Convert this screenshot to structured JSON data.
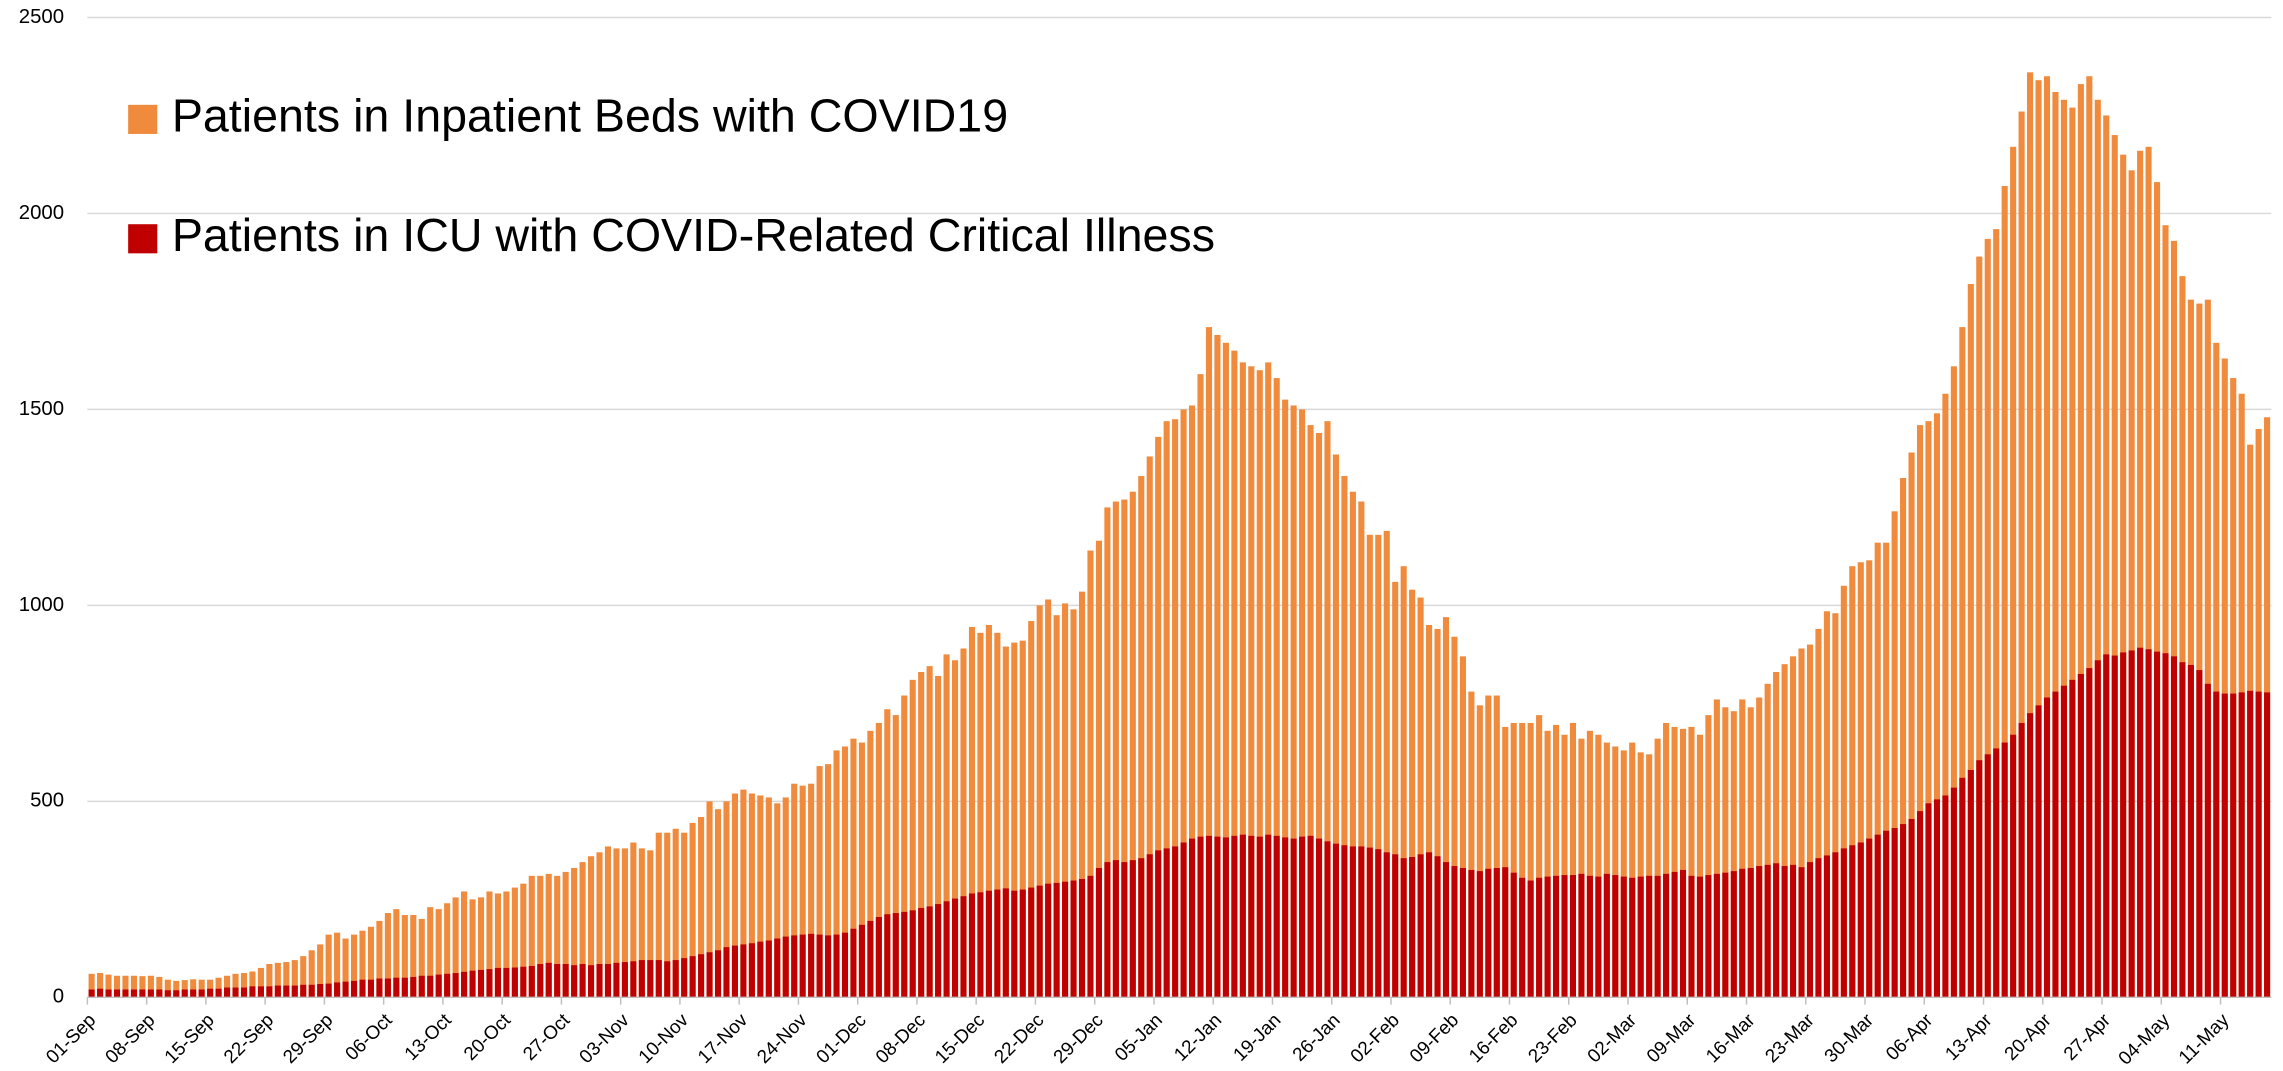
{
  "chart_data": {
    "type": "bar",
    "grid": true,
    "legend": "upper left",
    "ylim": [
      0,
      2500
    ],
    "yticks": [
      0,
      500,
      1000,
      1500,
      2000,
      2500
    ],
    "categories": [
      "01-Sep",
      null,
      null,
      null,
      null,
      null,
      null,
      "08-Sep",
      null,
      null,
      null,
      null,
      null,
      null,
      "15-Sep",
      null,
      null,
      null,
      null,
      null,
      null,
      "22-Sep",
      null,
      null,
      null,
      null,
      null,
      null,
      "29-Sep",
      null,
      null,
      null,
      null,
      null,
      null,
      "06-Oct",
      null,
      null,
      null,
      null,
      null,
      null,
      "13-Oct",
      null,
      null,
      null,
      null,
      null,
      null,
      "20-Oct",
      null,
      null,
      null,
      null,
      null,
      null,
      "27-Oct",
      null,
      null,
      null,
      null,
      null,
      null,
      "03-Nov",
      null,
      null,
      null,
      null,
      null,
      null,
      "10-Nov",
      null,
      null,
      null,
      null,
      null,
      null,
      "17-Nov",
      null,
      null,
      null,
      null,
      null,
      null,
      "24-Nov",
      null,
      null,
      null,
      null,
      null,
      null,
      "01-Dec",
      null,
      null,
      null,
      null,
      null,
      null,
      "08-Dec",
      null,
      null,
      null,
      null,
      null,
      null,
      "15-Dec",
      null,
      null,
      null,
      null,
      null,
      null,
      "22-Dec",
      null,
      null,
      null,
      null,
      null,
      null,
      "29-Dec",
      null,
      null,
      null,
      null,
      null,
      null,
      "05-Jan",
      null,
      null,
      null,
      null,
      null,
      null,
      "12-Jan",
      null,
      null,
      null,
      null,
      null,
      null,
      "19-Jan",
      null,
      null,
      null,
      null,
      null,
      null,
      "26-Jan",
      null,
      null,
      null,
      null,
      null,
      null,
      "02-Feb",
      null,
      null,
      null,
      null,
      null,
      null,
      "09-Feb",
      null,
      null,
      null,
      null,
      null,
      null,
      "16-Feb",
      null,
      null,
      null,
      null,
      null,
      null,
      "23-Feb",
      null,
      null,
      null,
      null,
      null,
      null,
      "02-Mar",
      null,
      null,
      null,
      null,
      null,
      null,
      "09-Mar",
      null,
      null,
      null,
      null,
      null,
      null,
      "16-Mar",
      null,
      null,
      null,
      null,
      null,
      null,
      "23-Mar",
      null,
      null,
      null,
      null,
      null,
      null,
      "30-Mar",
      null,
      null,
      null,
      null,
      null,
      null,
      "06-Apr",
      null,
      null,
      null,
      null,
      null,
      null,
      "13-Apr",
      null,
      null,
      null,
      null,
      null,
      null,
      "20-Apr",
      null,
      null,
      null,
      null,
      null,
      null,
      "27-Apr",
      null,
      null,
      null,
      null,
      null,
      null,
      "04-May",
      null,
      null,
      null,
      null,
      null,
      null,
      "11-May",
      null,
      null,
      null,
      null,
      null
    ],
    "series": [
      {
        "name": "Patients in Inpatient Beds with COVID19",
        "color": "#f08a3c",
        "values": [
          60,
          62,
          58,
          55,
          55,
          55,
          54,
          55,
          52,
          45,
          42,
          44,
          46,
          45,
          45,
          50,
          55,
          60,
          62,
          66,
          75,
          85,
          88,
          90,
          95,
          105,
          120,
          135,
          160,
          165,
          150,
          160,
          170,
          180,
          195,
          215,
          225,
          210,
          210,
          200,
          230,
          225,
          240,
          255,
          270,
          250,
          255,
          270,
          265,
          270,
          280,
          290,
          310,
          310,
          315,
          310,
          320,
          330,
          345,
          360,
          370,
          385,
          380,
          380,
          395,
          380,
          375,
          420,
          420,
          430,
          420,
          445,
          460,
          500,
          480,
          500,
          520,
          530,
          520,
          515,
          510,
          495,
          510,
          545,
          540,
          545,
          590,
          595,
          630,
          640,
          660,
          650,
          680,
          700,
          735,
          720,
          770,
          810,
          830,
          845,
          820,
          875,
          860,
          890,
          945,
          930,
          950,
          930,
          895,
          905,
          910,
          960,
          1000,
          1015,
          975,
          1005,
          990,
          1035,
          1140,
          1165,
          1250,
          1265,
          1270,
          1290,
          1330,
          1380,
          1430,
          1470,
          1475,
          1500,
          1510,
          1590,
          1710,
          1690,
          1670,
          1650,
          1620,
          1610,
          1600,
          1620,
          1580,
          1525,
          1510,
          1500,
          1460,
          1440,
          1470,
          1385,
          1330,
          1290,
          1265,
          1180,
          1180,
          1190,
          1060,
          1100,
          1040,
          1020,
          950,
          940,
          970,
          920,
          870,
          780,
          745,
          770,
          770,
          690,
          700,
          700,
          700,
          720,
          680,
          695,
          670,
          700,
          660,
          680,
          670,
          650,
          640,
          630,
          650,
          625,
          620,
          660,
          700,
          690,
          685,
          690,
          670,
          720,
          760,
          740,
          730,
          760,
          740,
          765,
          800,
          830,
          850,
          870,
          890,
          900,
          940,
          985,
          980,
          1050,
          1100,
          1110,
          1115,
          1160,
          1160,
          1240,
          1325,
          1390,
          1460,
          1470,
          1490,
          1540,
          1610,
          1710,
          1820,
          1890,
          1935,
          1960,
          2070,
          2170,
          2260,
          2360,
          2340,
          2350,
          2310,
          2290,
          2270,
          2330,
          2350,
          2290,
          2250,
          2200,
          2150,
          2110,
          2160,
          2170,
          2080,
          1970,
          1930,
          1840,
          1780,
          1770,
          1780,
          1670,
          1630,
          1580,
          1540,
          1410,
          1450,
          1480
        ]
      },
      {
        "name": "Patients in ICU with COVID-Related Critical Illness",
        "color": "#c00000",
        "values": [
          20,
          22,
          20,
          20,
          20,
          20,
          20,
          20,
          20,
          18,
          18,
          20,
          20,
          20,
          22,
          22,
          25,
          25,
          25,
          28,
          28,
          28,
          30,
          30,
          30,
          32,
          32,
          34,
          35,
          38,
          40,
          42,
          45,
          45,
          48,
          48,
          50,
          50,
          52,
          55,
          55,
          58,
          60,
          62,
          65,
          68,
          70,
          72,
          75,
          75,
          76,
          78,
          80,
          85,
          88,
          85,
          85,
          82,
          85,
          82,
          85,
          85,
          88,
          90,
          92,
          95,
          95,
          95,
          92,
          95,
          100,
          105,
          110,
          115,
          120,
          128,
          132,
          135,
          138,
          142,
          145,
          150,
          155,
          158,
          160,
          162,
          160,
          158,
          160,
          165,
          175,
          185,
          195,
          205,
          212,
          215,
          218,
          222,
          228,
          232,
          238,
          245,
          252,
          258,
          265,
          268,
          272,
          275,
          278,
          272,
          275,
          280,
          285,
          290,
          292,
          295,
          298,
          302,
          310,
          330,
          345,
          350,
          345,
          350,
          355,
          365,
          375,
          380,
          385,
          395,
          405,
          410,
          412,
          410,
          408,
          412,
          415,
          412,
          410,
          415,
          412,
          408,
          405,
          410,
          412,
          405,
          398,
          392,
          388,
          385,
          385,
          382,
          378,
          370,
          365,
          355,
          358,
          365,
          370,
          360,
          345,
          335,
          330,
          325,
          322,
          328,
          330,
          332,
          318,
          305,
          298,
          305,
          308,
          310,
          312,
          312,
          315,
          310,
          308,
          315,
          312,
          308,
          305,
          308,
          310,
          310,
          315,
          320,
          325,
          310,
          308,
          312,
          315,
          318,
          322,
          328,
          330,
          335,
          338,
          342,
          335,
          338,
          332,
          345,
          355,
          362,
          370,
          380,
          388,
          395,
          405,
          415,
          425,
          432,
          442,
          455,
          475,
          495,
          505,
          515,
          535,
          560,
          580,
          605,
          620,
          635,
          650,
          670,
          700,
          725,
          745,
          765,
          780,
          795,
          810,
          825,
          840,
          860,
          875,
          872,
          880,
          885,
          892,
          888,
          882,
          878,
          870,
          855,
          848,
          835,
          800,
          780,
          775,
          775,
          778,
          782,
          780,
          778
        ]
      }
    ]
  }
}
